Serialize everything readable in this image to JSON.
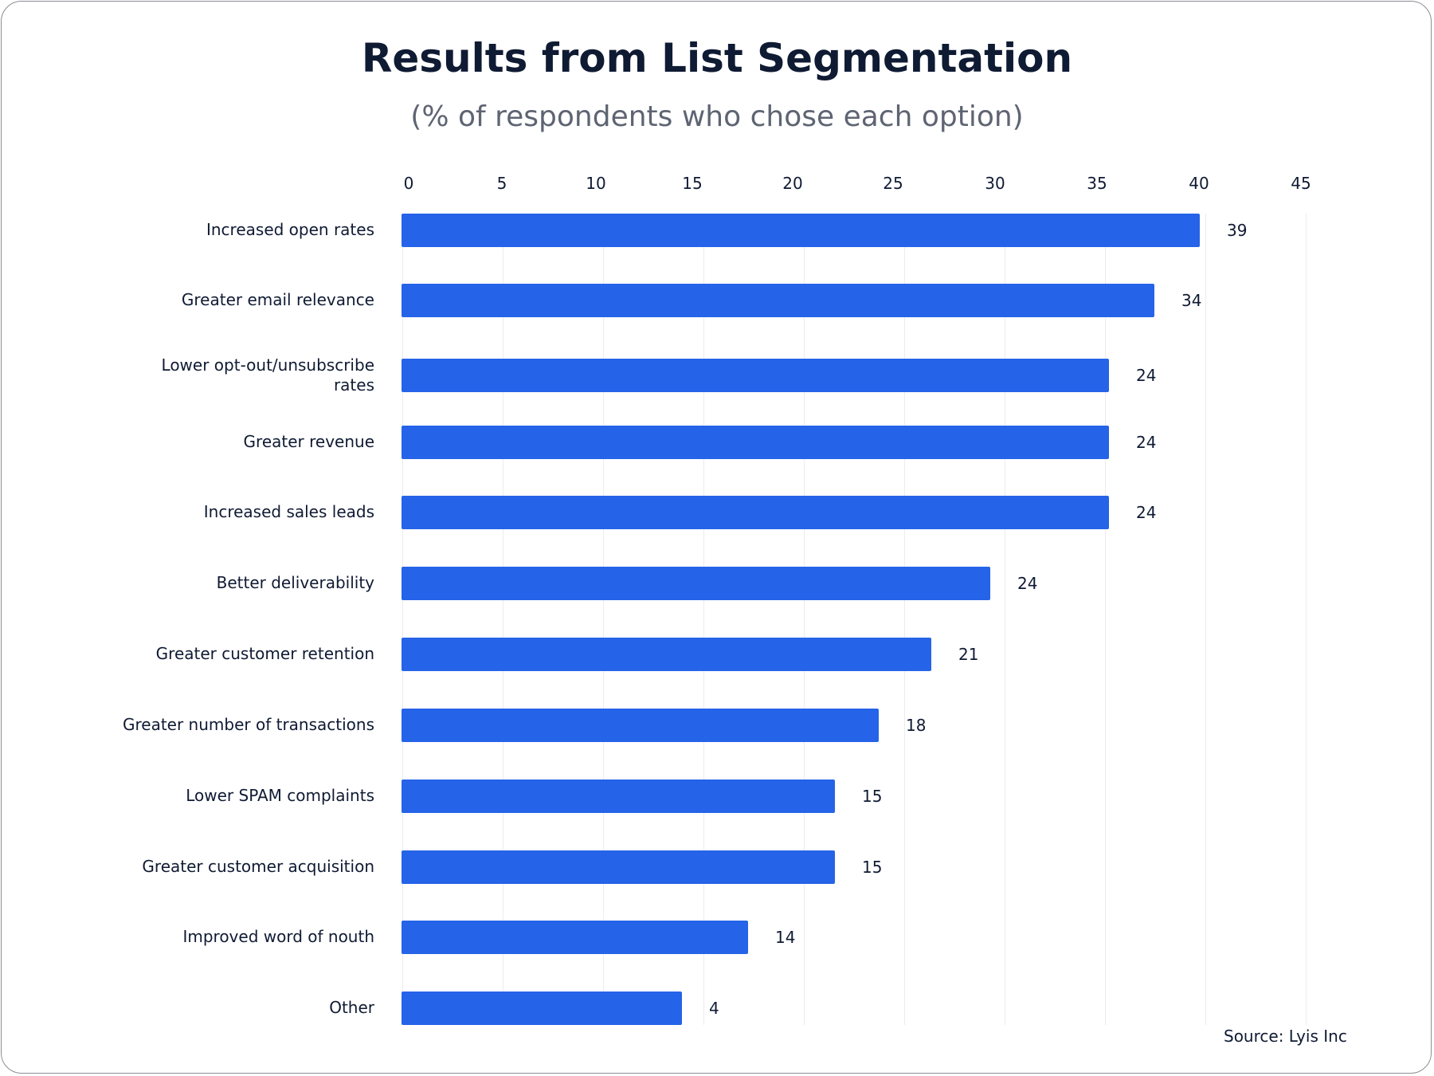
{
  "chart_data": {
    "type": "bar",
    "orientation": "horizontal",
    "title": "Results from  List Segmentation",
    "subtitle": "(% of respondents who chose each option)",
    "xlabel": "",
    "ylabel": "",
    "xlim": [
      0,
      45
    ],
    "x_ticks": [
      "0",
      "5",
      "10",
      "15",
      "20",
      "25",
      "30",
      "35",
      "40",
      "45"
    ],
    "grid": true,
    "legend": null,
    "categories": [
      "Increased open rates",
      "Greater email relevance",
      "Lower opt-out/unsubscribe rates",
      "Greater revenue",
      "Increased sales leads",
      "Better deliverability",
      "Greater customer retention",
      "Greater number of transactions",
      "Lower SPAM complaints",
      "Greater customer acquisition",
      "Improved word of nouth",
      "Other"
    ],
    "values": [
      39,
      34,
      24,
      24,
      24,
      24,
      21,
      18,
      15,
      15,
      14,
      4
    ],
    "series": [
      {
        "name": "% of respondents",
        "color": "#2563e8",
        "values": [
          39,
          34,
          24,
          24,
          24,
          24,
          21,
          18,
          15,
          15,
          14,
          4
        ]
      }
    ],
    "annotations": [
      "Source: Lyis Inc"
    ]
  },
  "labels": {
    "title": "Results from  List Segmentation",
    "subtitle": "(% of respondents who chose each option)",
    "source": "Source: Lyis Inc",
    "ticks": [
      "0",
      "5",
      "10",
      "15",
      "20",
      "25",
      "30",
      "35",
      "40",
      "45"
    ],
    "rows": [
      {
        "label": "Increased open rates",
        "value": "39"
      },
      {
        "label": "Greater email relevance",
        "value": "34"
      },
      {
        "label": "Lower opt-out/unsubscribe rates",
        "value": "24"
      },
      {
        "label": "Greater revenue",
        "value": "24"
      },
      {
        "label": "Increased sales leads",
        "value": "24"
      },
      {
        "label": "Better deliverability",
        "value": "24"
      },
      {
        "label": "Greater customer retention",
        "value": "21"
      },
      {
        "label": "Greater number of transactions",
        "value": "18"
      },
      {
        "label": "Lower SPAM complaints",
        "value": "15"
      },
      {
        "label": "Greater customer acquisition",
        "value": "15"
      },
      {
        "label": "Improved word of nouth",
        "value": "14"
      },
      {
        "label": "Other",
        "value": "4"
      }
    ]
  },
  "colors": {
    "bar": "#2563e8",
    "title": "#0f1a33",
    "subtitle": "#5e6472",
    "grid": "#ececef"
  }
}
